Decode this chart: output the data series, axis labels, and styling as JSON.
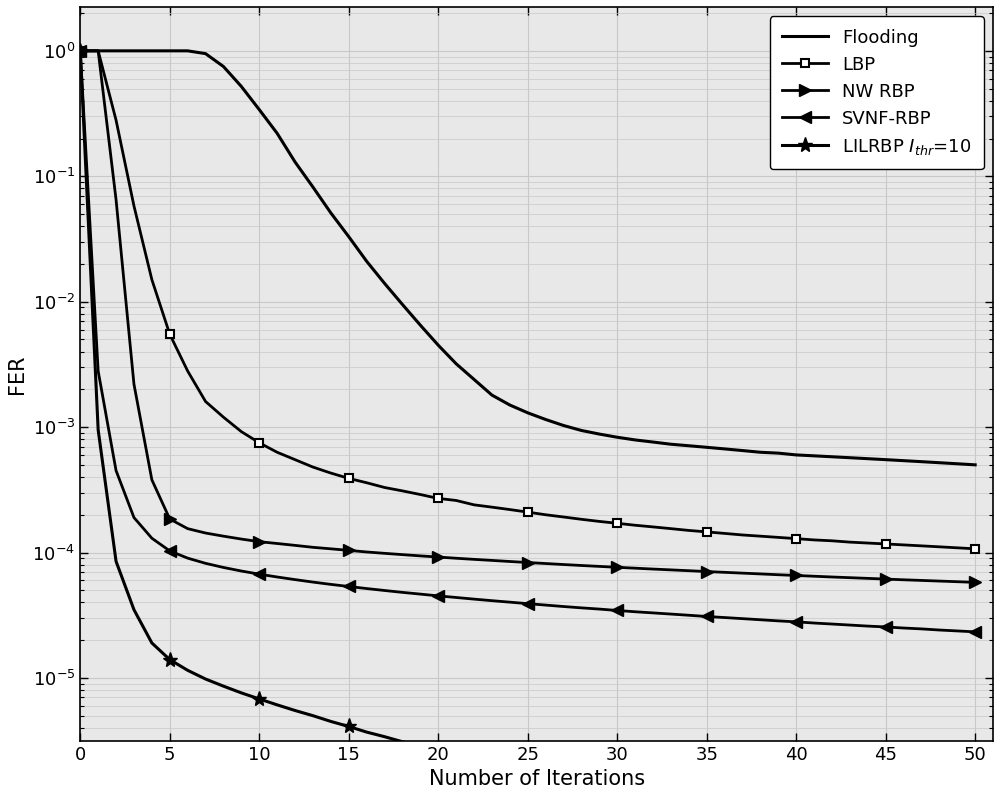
{
  "title": "",
  "xlabel": "Number of Iterations",
  "ylabel": "FER",
  "xlim": [
    0,
    51
  ],
  "x_ticks": [
    0,
    5,
    10,
    15,
    20,
    25,
    30,
    35,
    40,
    45,
    50
  ],
  "background_color": "#ffffff",
  "plot_bg_color": "#e8e8e8",
  "grid_color": "#c8c8c8",
  "flooding": {
    "x": [
      0,
      1,
      2,
      3,
      4,
      5,
      6,
      7,
      8,
      9,
      10,
      11,
      12,
      13,
      14,
      15,
      16,
      17,
      18,
      19,
      20,
      21,
      22,
      23,
      24,
      25,
      26,
      27,
      28,
      29,
      30,
      31,
      32,
      33,
      34,
      35,
      36,
      37,
      38,
      39,
      40,
      41,
      42,
      43,
      44,
      45,
      46,
      47,
      48,
      49,
      50
    ],
    "y": [
      1.0,
      1.0,
      1.0,
      1.0,
      1.0,
      1.0,
      1.0,
      0.95,
      0.75,
      0.52,
      0.34,
      0.22,
      0.13,
      0.082,
      0.051,
      0.033,
      0.021,
      0.014,
      0.0095,
      0.0065,
      0.0045,
      0.0032,
      0.0024,
      0.0018,
      0.0015,
      0.0013,
      0.00115,
      0.00103,
      0.00094,
      0.00088,
      0.00083,
      0.00079,
      0.00076,
      0.00073,
      0.00071,
      0.00069,
      0.00067,
      0.00065,
      0.00063,
      0.00062,
      0.0006,
      0.00059,
      0.00058,
      0.00057,
      0.00056,
      0.00055,
      0.00054,
      0.00053,
      0.00052,
      0.00051,
      0.0005
    ],
    "label": "Flooding",
    "color": "#000000",
    "lw": 2.2,
    "marker": "None",
    "markersize": 0,
    "markevery": 1
  },
  "lbp": {
    "x": [
      0,
      1,
      2,
      3,
      4,
      5,
      6,
      7,
      8,
      9,
      10,
      11,
      12,
      13,
      14,
      15,
      16,
      17,
      18,
      19,
      20,
      21,
      22,
      23,
      24,
      25,
      26,
      27,
      28,
      29,
      30,
      31,
      32,
      33,
      34,
      35,
      36,
      37,
      38,
      39,
      40,
      41,
      42,
      43,
      44,
      45,
      46,
      47,
      48,
      49,
      50
    ],
    "y": [
      1.0,
      1.0,
      0.28,
      0.058,
      0.015,
      0.0055,
      0.0028,
      0.0016,
      0.0012,
      0.00092,
      0.00075,
      0.00063,
      0.00055,
      0.00048,
      0.00043,
      0.00039,
      0.00036,
      0.00033,
      0.00031,
      0.00029,
      0.00027,
      0.00026,
      0.00024,
      0.00023,
      0.00022,
      0.00021,
      0.0002,
      0.000192,
      0.000184,
      0.000177,
      0.000171,
      0.000165,
      0.00016,
      0.000155,
      0.00015,
      0.000146,
      0.000142,
      0.000138,
      0.000135,
      0.000132,
      0.000129,
      0.000126,
      0.000124,
      0.000121,
      0.000119,
      0.000117,
      0.000115,
      0.000113,
      0.000111,
      0.000109,
      0.000107
    ],
    "label": "LBP",
    "color": "#000000",
    "lw": 2.0,
    "marker": "s",
    "markersize": 6,
    "markevery": 5
  },
  "nw_rbp": {
    "x": [
      0,
      1,
      2,
      3,
      4,
      5,
      6,
      7,
      8,
      9,
      10,
      11,
      12,
      13,
      14,
      15,
      16,
      17,
      18,
      19,
      20,
      21,
      22,
      23,
      24,
      25,
      26,
      27,
      28,
      29,
      30,
      31,
      32,
      33,
      34,
      35,
      36,
      37,
      38,
      39,
      40,
      41,
      42,
      43,
      44,
      45,
      46,
      47,
      48,
      49,
      50
    ],
    "y": [
      1.0,
      1.0,
      0.065,
      0.0022,
      0.00038,
      0.000185,
      0.000155,
      0.000143,
      0.000135,
      0.000128,
      0.000122,
      0.000118,
      0.000114,
      0.00011,
      0.000107,
      0.000104,
      0.000101,
      9.85e-05,
      9.62e-05,
      9.4e-05,
      9.2e-05,
      9e-05,
      8.82e-05,
      8.65e-05,
      8.48e-05,
      8.32e-05,
      8.17e-05,
      8.02e-05,
      7.88e-05,
      7.75e-05,
      7.62e-05,
      7.5e-05,
      7.38e-05,
      7.27e-05,
      7.16e-05,
      7.05e-05,
      6.95e-05,
      6.85e-05,
      6.75e-05,
      6.65e-05,
      6.56e-05,
      6.47e-05,
      6.38e-05,
      6.3e-05,
      6.22e-05,
      6.14e-05,
      6.06e-05,
      5.99e-05,
      5.92e-05,
      5.85e-05,
      5.78e-05
    ],
    "label": "NW RBP",
    "color": "#000000",
    "lw": 2.0,
    "marker": ">",
    "markersize": 8,
    "markevery": 5
  },
  "svnf_rbp": {
    "x": [
      0,
      1,
      2,
      3,
      4,
      5,
      6,
      7,
      8,
      9,
      10,
      11,
      12,
      13,
      14,
      15,
      16,
      17,
      18,
      19,
      20,
      21,
      22,
      23,
      24,
      25,
      26,
      27,
      28,
      29,
      30,
      31,
      32,
      33,
      34,
      35,
      36,
      37,
      38,
      39,
      40,
      41,
      42,
      43,
      44,
      45,
      46,
      47,
      48,
      49,
      50
    ],
    "y": [
      1.0,
      0.0028,
      0.00045,
      0.00019,
      0.00013,
      0.000103,
      9.02e-05,
      8.2e-05,
      7.6e-05,
      7.12e-05,
      6.72e-05,
      6.38e-05,
      6.08e-05,
      5.81e-05,
      5.57e-05,
      5.36e-05,
      5.16e-05,
      4.98e-05,
      4.81e-05,
      4.66e-05,
      4.51e-05,
      4.38e-05,
      4.25e-05,
      4.13e-05,
      4.02e-05,
      3.91e-05,
      3.81e-05,
      3.71e-05,
      3.62e-05,
      3.54e-05,
      3.45e-05,
      3.37e-05,
      3.3e-05,
      3.23e-05,
      3.16e-05,
      3.09e-05,
      3.03e-05,
      2.97e-05,
      2.91e-05,
      2.85e-05,
      2.8e-05,
      2.74e-05,
      2.69e-05,
      2.64e-05,
      2.59e-05,
      2.55e-05,
      2.5e-05,
      2.46e-05,
      2.41e-05,
      2.37e-05,
      2.33e-05
    ],
    "label": "SVNF-RBP",
    "color": "#000000",
    "lw": 2.0,
    "marker": "<",
    "markersize": 8,
    "markevery": 5
  },
  "lilrbp": {
    "x": [
      0,
      1,
      2,
      3,
      4,
      5,
      6,
      7,
      8,
      9,
      10,
      11,
      12,
      13,
      14,
      15,
      16,
      17,
      18,
      19,
      20,
      21,
      22,
      23,
      24,
      25,
      26,
      27,
      28,
      29,
      30,
      31,
      32,
      33,
      34,
      35,
      36,
      37,
      38,
      39,
      40,
      41,
      42,
      43,
      44,
      45,
      46,
      47,
      48,
      49,
      50
    ],
    "y": [
      1.0,
      0.00095,
      8.5e-05,
      3.5e-05,
      1.9e-05,
      1.4e-05,
      1.15e-05,
      9.8e-06,
      8.6e-06,
      7.6e-06,
      6.8e-06,
      6.1e-06,
      5.5e-06,
      5e-06,
      4.5e-06,
      4.1e-06,
      3.7e-06,
      3.4e-06,
      3.1e-06,
      2.8e-06,
      2.6e-06,
      2.4e-06,
      2.2e-06,
      2e-06,
      1.9e-06,
      1.7e-06,
      1.6e-06,
      1.5e-06,
      1.42e-06,
      1.34e-06,
      1.27e-06,
      1.2e-06,
      1.14e-06,
      1.08e-06,
      1.03e-06,
      9.8e-07,
      9.3e-07,
      8.9e-07,
      8.5e-07,
      8.1e-07,
      7.7e-07,
      7.4e-07,
      7.1e-07,
      6.8e-07,
      6.5e-07,
      6.2e-07,
      6e-07,
      5.7e-07,
      5.5e-07,
      5.3e-07,
      5.1e-07
    ],
    "label": "LILRBP $I_{thr}$=10",
    "color": "#000000",
    "lw": 2.2,
    "marker": "*",
    "markersize": 11,
    "markevery": 5
  }
}
